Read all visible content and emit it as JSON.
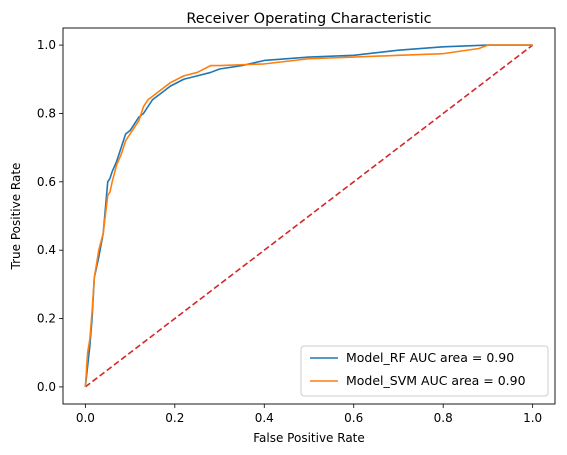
{
  "chart_data": {
    "type": "line",
    "title": "Receiver Operating Characteristic",
    "xlabel": "False Positive Rate",
    "ylabel": "True Positive Rate",
    "xlim": [
      -0.05,
      1.05
    ],
    "ylim": [
      -0.05,
      1.05
    ],
    "x_ticks": [
      "0.0",
      "0.2",
      "0.4",
      "0.6",
      "0.8",
      "1.0"
    ],
    "y_ticks": [
      "0.0",
      "0.2",
      "0.4",
      "0.6",
      "0.8",
      "1.0"
    ],
    "grid": false,
    "legend_position": "lower-right",
    "series": [
      {
        "name": "Model_RF AUC area = 0.90",
        "color": "#1f77b4",
        "style": "solid",
        "x": [
          0.0,
          0.005,
          0.01,
          0.015,
          0.02,
          0.025,
          0.03,
          0.04,
          0.05,
          0.055,
          0.06,
          0.07,
          0.08,
          0.09,
          0.1,
          0.11,
          0.12,
          0.13,
          0.14,
          0.15,
          0.17,
          0.19,
          0.22,
          0.25,
          0.28,
          0.3,
          0.35,
          0.4,
          0.5,
          0.6,
          0.7,
          0.8,
          0.9,
          1.0
        ],
        "y": [
          0.0,
          0.06,
          0.12,
          0.2,
          0.32,
          0.35,
          0.38,
          0.45,
          0.6,
          0.61,
          0.63,
          0.66,
          0.7,
          0.74,
          0.75,
          0.77,
          0.79,
          0.8,
          0.82,
          0.84,
          0.86,
          0.88,
          0.9,
          0.91,
          0.92,
          0.93,
          0.94,
          0.955,
          0.965,
          0.97,
          0.985,
          0.995,
          1.0,
          1.0
        ]
      },
      {
        "name": "Model_SVM AUC area = 0.90",
        "color": "#ff7f0e",
        "style": "solid",
        "x": [
          0.0,
          0.005,
          0.01,
          0.015,
          0.02,
          0.025,
          0.03,
          0.04,
          0.05,
          0.055,
          0.06,
          0.07,
          0.08,
          0.09,
          0.1,
          0.11,
          0.12,
          0.13,
          0.14,
          0.15,
          0.17,
          0.19,
          0.22,
          0.25,
          0.28,
          0.3,
          0.4,
          0.5,
          0.6,
          0.7,
          0.8,
          0.88,
          0.9,
          1.0
        ],
        "y": [
          0.0,
          0.1,
          0.14,
          0.22,
          0.32,
          0.36,
          0.4,
          0.45,
          0.56,
          0.57,
          0.6,
          0.65,
          0.68,
          0.72,
          0.74,
          0.76,
          0.78,
          0.82,
          0.84,
          0.85,
          0.87,
          0.89,
          0.91,
          0.92,
          0.94,
          0.94,
          0.945,
          0.96,
          0.965,
          0.97,
          0.975,
          0.99,
          1.0,
          1.0
        ]
      },
      {
        "name": "",
        "color": "#d62728",
        "style": "dashed",
        "x": [
          0,
          1
        ],
        "y": [
          0,
          1
        ]
      }
    ]
  }
}
